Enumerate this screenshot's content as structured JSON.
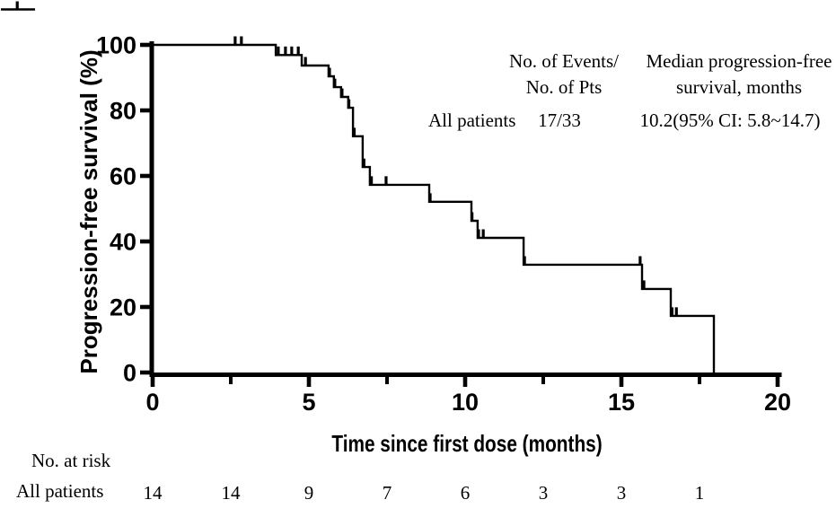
{
  "figure_bg": "#ffffff",
  "line_color": "#000000",
  "table": {
    "col1_header_line1": "No. of Events/",
    "col1_header_line2": "No. of Pts",
    "col2_header_line1": "Median progression-free",
    "col2_header_line2": "survival, months",
    "row_label": "All patients",
    "events": "17/33",
    "median": "10.2(95% CI: 5.8~14.7)"
  },
  "at_risk_table": {
    "title": "No. at risk",
    "row_label": "All patients"
  },
  "chart_data": {
    "type": "line",
    "subtype": "kaplan-meier-step",
    "title": "",
    "xlabel": "Time since first dose (months)",
    "ylabel": "Progression-free survival (%)",
    "xlim": [
      0,
      20
    ],
    "ylim": [
      0,
      100
    ],
    "x_major_ticks": [
      0,
      5,
      10,
      15,
      20
    ],
    "x_minor_ticks": [
      2.5,
      7.5,
      12.5,
      17.5
    ],
    "y_ticks": [
      0,
      20,
      40,
      60,
      80,
      100
    ],
    "grid": false,
    "legend_position": "upper-right",
    "series": [
      {
        "name": "All patients",
        "events_over_pts": "17/33",
        "median_pfs_months": "10.2(95% CI: 5.8~14.7)",
        "start": [
          0,
          100
        ],
        "step_drops": [
          [
            3.94,
            96.9
          ],
          [
            4.77,
            93.7
          ],
          [
            5.63,
            90.4
          ],
          [
            5.8,
            87.1
          ],
          [
            6.03,
            84.1
          ],
          [
            6.26,
            80.8
          ],
          [
            6.41,
            72.1
          ],
          [
            6.72,
            62.7
          ],
          [
            6.95,
            57.3
          ],
          [
            8.85,
            52.1
          ],
          [
            10.2,
            46.3
          ],
          [
            10.4,
            41.1
          ],
          [
            11.87,
            32.9
          ],
          [
            15.66,
            25.5
          ],
          [
            16.58,
            17.3
          ],
          [
            17.96,
            0
          ]
        ],
        "censor_marks": [
          [
            2.64,
            100
          ],
          [
            2.84,
            100
          ],
          [
            4.02,
            96.9
          ],
          [
            4.25,
            96.9
          ],
          [
            4.45,
            96.9
          ],
          [
            4.66,
            96.9
          ],
          [
            4.89,
            93.7
          ],
          [
            5.66,
            90.4
          ],
          [
            5.83,
            87.1
          ],
          [
            6.06,
            84.1
          ],
          [
            6.28,
            80.8
          ],
          [
            6.45,
            72.1
          ],
          [
            6.76,
            62.7
          ],
          [
            7.0,
            57.3
          ],
          [
            7.47,
            57.3
          ],
          [
            8.88,
            52.1
          ],
          [
            10.22,
            46.3
          ],
          [
            10.43,
            41.1
          ],
          [
            10.58,
            41.1
          ],
          [
            11.9,
            32.9
          ],
          [
            15.6,
            32.9
          ],
          [
            15.72,
            25.5
          ],
          [
            16.62,
            17.3
          ],
          [
            16.76,
            17.3
          ]
        ]
      }
    ],
    "at_risk": {
      "times": [
        0,
        2.5,
        5,
        7.5,
        10,
        12.5,
        15,
        17.5
      ],
      "counts": [
        14,
        14,
        9,
        7,
        6,
        3,
        3,
        1
      ]
    }
  }
}
